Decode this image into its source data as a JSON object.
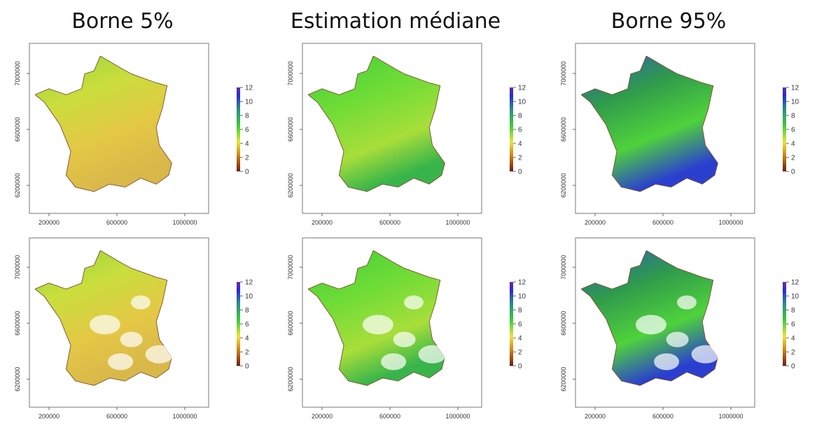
{
  "titles": [
    "Borne 5%",
    "Estimation médiane",
    "Borne 95%"
  ],
  "x_ticks": [
    200000,
    600000,
    1000000
  ],
  "y_ticks": [
    6200000,
    6600000,
    7000000
  ],
  "colorbar_ticks": [
    0,
    2,
    4,
    6,
    8,
    10,
    12
  ]
}
